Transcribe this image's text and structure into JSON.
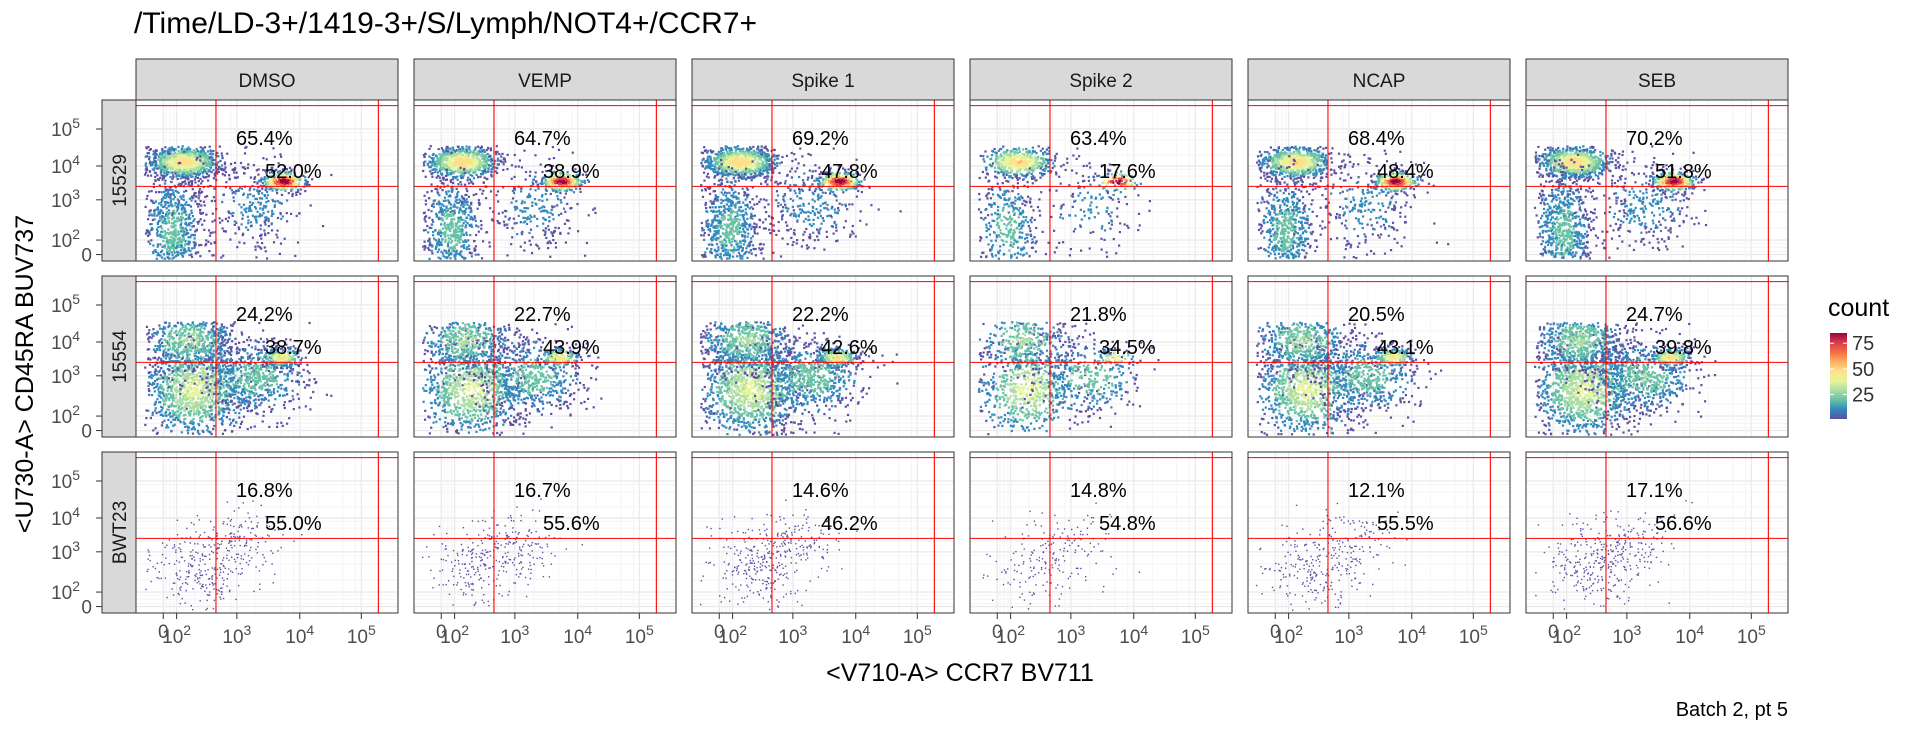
{
  "chart_data": {
    "type": "heatmap",
    "title": "/Time/LD-3+/1419-3+/S/Lymph/NOT4+/CCR7+",
    "xlabel": "<V710-A> CCR7 BV711",
    "ylabel": "<U730-A> CD45RA BUV737",
    "caption": "Batch 2, pt 5",
    "columns": [
      "DMSO",
      "VEMP",
      "Spike 1",
      "Spike 2",
      "NCAP",
      "SEB"
    ],
    "rows": [
      "15529",
      "15554",
      "BWT23"
    ],
    "x_ticks": [
      {
        "label": "0",
        "sup": ""
      },
      {
        "label": "10",
        "sup": "2"
      },
      {
        "label": "10",
        "sup": "3"
      },
      {
        "label": "10",
        "sup": "4"
      },
      {
        "label": "10",
        "sup": "5"
      }
    ],
    "y_ticks": [
      {
        "label": "0",
        "sup": ""
      },
      {
        "label": "10",
        "sup": "2"
      },
      {
        "label": "10",
        "sup": "3"
      },
      {
        "label": "10",
        "sup": "4"
      },
      {
        "label": "10",
        "sup": "5"
      }
    ],
    "gates": {
      "x_threshold": 450,
      "y_threshold": 2500
    },
    "annotations": [
      [
        {
          "upper": "65.4%",
          "lower": "52.0%"
        },
        {
          "upper": "64.7%",
          "lower": "38.9%"
        },
        {
          "upper": "69.2%",
          "lower": "47.8%"
        },
        {
          "upper": "63.4%",
          "lower": "17.6%"
        },
        {
          "upper": "68.4%",
          "lower": "48.4%"
        },
        {
          "upper": "70.2%",
          "lower": "51.8%"
        }
      ],
      [
        {
          "upper": "24.2%",
          "lower": "38.7%"
        },
        {
          "upper": "22.7%",
          "lower": "43.9%"
        },
        {
          "upper": "22.2%",
          "lower": "42.6%"
        },
        {
          "upper": "21.8%",
          "lower": "34.5%"
        },
        {
          "upper": "20.5%",
          "lower": "43.1%"
        },
        {
          "upper": "24.7%",
          "lower": "39.8%"
        }
      ],
      [
        {
          "upper": "16.8%",
          "lower": "55.0%"
        },
        {
          "upper": "16.7%",
          "lower": "55.6%"
        },
        {
          "upper": "14.6%",
          "lower": "46.2%"
        },
        {
          "upper": "14.8%",
          "lower": "54.8%"
        },
        {
          "upper": "12.1%",
          "lower": "55.5%"
        },
        {
          "upper": "17.1%",
          "lower": "56.6%"
        }
      ]
    ],
    "legend": {
      "title": "count",
      "ticks": [
        75,
        50,
        25
      ],
      "range": [
        1,
        85
      ],
      "colors": [
        "#5e4fa2",
        "#3288bd",
        "#66c2a5",
        "#abdda4",
        "#e6f598",
        "#fee08b",
        "#fdae61",
        "#f46d43",
        "#d53e4f",
        "#9e0142"
      ]
    },
    "gate_color": "#ff0000",
    "strip_fill": "#d9d9d9",
    "grid": true
  }
}
